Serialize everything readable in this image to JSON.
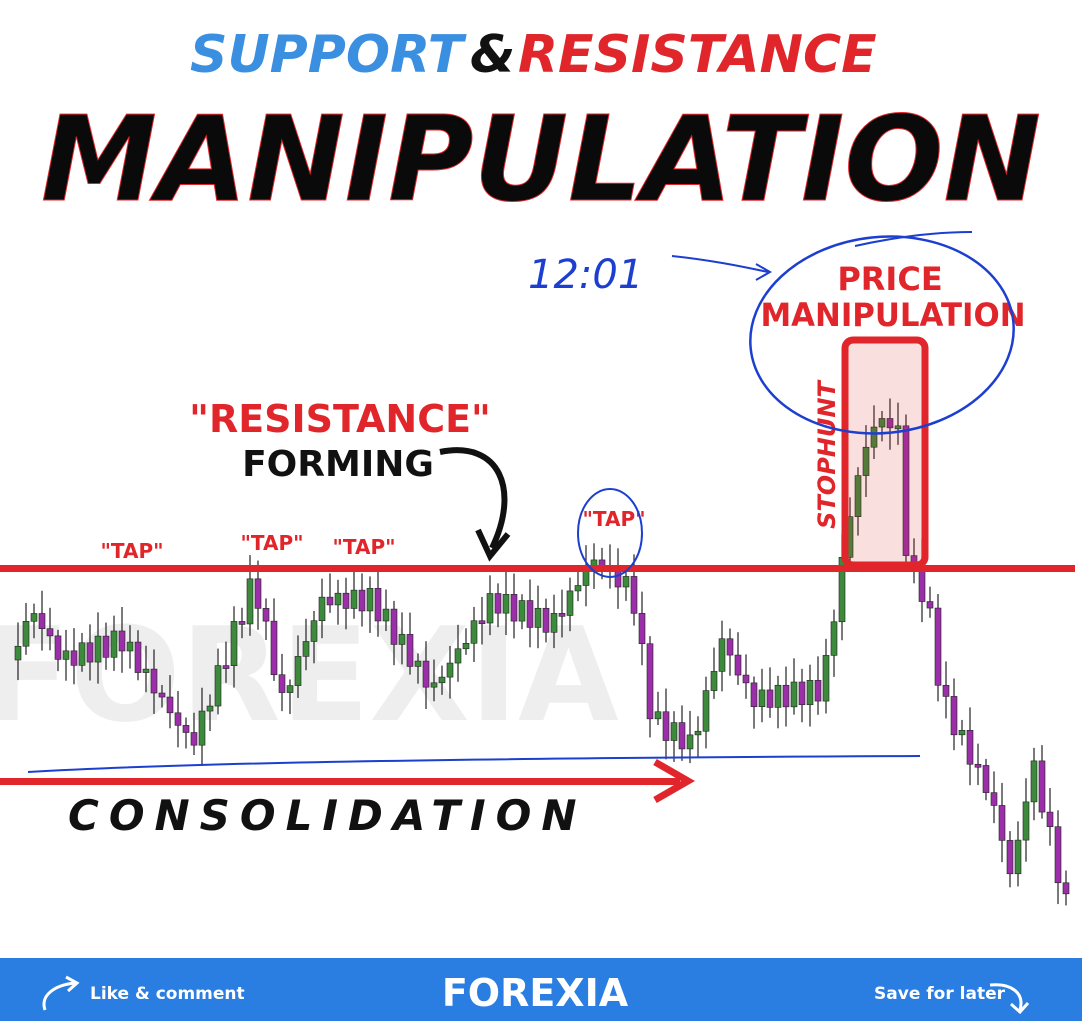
{
  "header": {
    "title_part1": "SUPPORT",
    "title_amp": "&",
    "title_part2": "RESISTANCE",
    "headline": "MANIPULATION"
  },
  "annotations": {
    "resistance": "\"RESISTANCE\"",
    "forming": "FORMING",
    "taps": [
      "\"TAP\"",
      "\"TAP\"",
      "\"TAP\"",
      "\"TAP\""
    ],
    "price": "PRICE",
    "manipulation": "MANIPULATION",
    "stophunt": "STOPHUNT",
    "consolidation": "CONSOLIDATION",
    "handwritten": "12:01"
  },
  "footer": {
    "like": "Like & comment",
    "logo": "FOREXIA",
    "save": "Save for later"
  }
}
